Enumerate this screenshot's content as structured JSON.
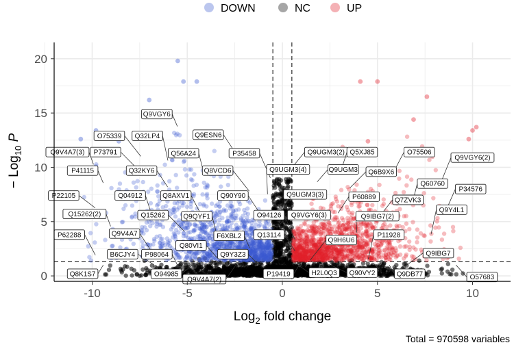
{
  "chart_data": {
    "type": "scatter",
    "title": "",
    "xlabel": "Log2 fold change",
    "ylabel": "-Log10 P",
    "xlim": [
      -12,
      12
    ],
    "ylim": [
      -0.5,
      21.5
    ],
    "xticks": [
      -10,
      -5,
      0,
      5,
      10
    ],
    "yticks": [
      0,
      5,
      10,
      15,
      20
    ],
    "grid": true,
    "legend_position": "top",
    "fc_cutoff": [
      -0.5,
      0.5
    ],
    "p_cutoff": 1.3,
    "caption": "Total = 970598 variables",
    "series": [
      {
        "name": "DOWN",
        "color": "#3b5bcf"
      },
      {
        "name": "NC",
        "color": "#000000"
      },
      {
        "name": "UP",
        "color": "#e0202c"
      }
    ],
    "highlight_points": [
      {
        "series": "DOWN",
        "x": -5.5,
        "y": 19.8
      },
      {
        "series": "DOWN",
        "x": -5.2,
        "y": 17.9
      },
      {
        "series": "DOWN",
        "x": -4.5,
        "y": 17.9
      },
      {
        "series": "DOWN",
        "x": -7.0,
        "y": 16.2
      },
      {
        "series": "DOWN",
        "x": -10.6,
        "y": 12.6
      },
      {
        "series": "DOWN",
        "x": -9.8,
        "y": 13.4
      },
      {
        "series": "DOWN",
        "x": -8.6,
        "y": 12.4
      },
      {
        "series": "UP",
        "x": 4.1,
        "y": 17.9
      },
      {
        "series": "UP",
        "x": 5.0,
        "y": 17.9
      },
      {
        "series": "UP",
        "x": 7.6,
        "y": 16.5
      },
      {
        "series": "UP",
        "x": 6.9,
        "y": 14.4
      },
      {
        "series": "UP",
        "x": 10.2,
        "y": 13.7
      },
      {
        "series": "UP",
        "x": 10.0,
        "y": 13.4
      },
      {
        "series": "UP",
        "x": 9.8,
        "y": 12.6
      },
      {
        "series": "UP",
        "x": 4.5,
        "y": 12.4
      }
    ],
    "labels": [
      {
        "text": "Q9VGY6",
        "x": -6.6,
        "y": 14.9
      },
      {
        "text": "Q9ESN6",
        "x": -3.9,
        "y": 13.0
      },
      {
        "text": "O75339",
        "x": -9.1,
        "y": 12.9
      },
      {
        "text": "Q32LP4",
        "x": -7.1,
        "y": 12.9
      },
      {
        "text": "Q9V4A7(3)",
        "x": -11.3,
        "y": 11.4
      },
      {
        "text": "P73791",
        "x": -9.3,
        "y": 11.4
      },
      {
        "text": "Q56A24",
        "x": -5.2,
        "y": 11.3
      },
      {
        "text": "P35458",
        "x": -2.0,
        "y": 11.3
      },
      {
        "text": "Q9UGM3(2)",
        "x": 2.3,
        "y": 11.4
      },
      {
        "text": "Q5XJ85",
        "x": 4.2,
        "y": 11.4
      },
      {
        "text": "O75506",
        "x": 7.2,
        "y": 11.4
      },
      {
        "text": "Q9VGY6(2)",
        "x": 10.0,
        "y": 10.9
      },
      {
        "text": "P41115",
        "x": -10.5,
        "y": 9.7
      },
      {
        "text": "Q32KY6",
        "x": -7.4,
        "y": 9.7
      },
      {
        "text": "Q8VCD6",
        "x": -3.4,
        "y": 9.7
      },
      {
        "text": "Q9UGM3(4)",
        "x": 0.3,
        "y": 9.8
      },
      {
        "text": "Q9UGM3",
        "x": 3.2,
        "y": 9.8
      },
      {
        "text": "Q6B9X6",
        "x": 5.2,
        "y": 9.6
      },
      {
        "text": "Q60760",
        "x": 7.9,
        "y": 8.5
      },
      {
        "text": "P34576",
        "x": 9.9,
        "y": 8.0
      },
      {
        "text": "P22105",
        "x": -11.5,
        "y": 7.4
      },
      {
        "text": "Q04912",
        "x": -8.0,
        "y": 7.4
      },
      {
        "text": "Q8AXV1",
        "x": -5.6,
        "y": 7.4
      },
      {
        "text": "Q90Y90",
        "x": -2.6,
        "y": 7.4
      },
      {
        "text": "Q9UGM3(3)",
        "x": 1.2,
        "y": 7.5
      },
      {
        "text": "P60889",
        "x": 4.3,
        "y": 7.3
      },
      {
        "text": "Q7ZVK3",
        "x": 6.6,
        "y": 7.0
      },
      {
        "text": "Q9Y4L1",
        "x": 8.9,
        "y": 6.1
      },
      {
        "text": "Q15262(2)",
        "x": -10.4,
        "y": 5.7
      },
      {
        "text": "Q15262",
        "x": -6.8,
        "y": 5.6
      },
      {
        "text": "Q9QYF1",
        "x": -4.5,
        "y": 5.5
      },
      {
        "text": "O94126",
        "x": -0.7,
        "y": 5.6
      },
      {
        "text": "Q9VGY6(3)",
        "x": 1.4,
        "y": 5.6
      },
      {
        "text": "Q9IBG7(2)",
        "x": 5.0,
        "y": 5.5
      },
      {
        "text": "P62288",
        "x": -11.2,
        "y": 3.8
      },
      {
        "text": "Q9V4A7",
        "x": -8.3,
        "y": 3.9
      },
      {
        "text": "F6XBL2",
        "x": -2.8,
        "y": 3.7
      },
      {
        "text": "Q13114",
        "x": -0.7,
        "y": 3.8
      },
      {
        "text": "Q9H6U6",
        "x": 3.1,
        "y": 3.3
      },
      {
        "text": "P11928",
        "x": 5.6,
        "y": 3.8
      },
      {
        "text": "Q80VI1",
        "x": -4.8,
        "y": 2.8
      },
      {
        "text": "B6CJY4",
        "x": -8.4,
        "y": 2.0
      },
      {
        "text": "P98064",
        "x": -6.6,
        "y": 2.0
      },
      {
        "text": "Q9Y3Z3",
        "x": -2.6,
        "y": 2.0
      },
      {
        "text": "Q9IBG7",
        "x": 8.2,
        "y": 2.1
      },
      {
        "text": "Q8K1S7",
        "x": -10.5,
        "y": 0.2
      },
      {
        "text": "O94985",
        "x": -6.1,
        "y": 0.2
      },
      {
        "text": "Q9V4A7(2)",
        "x": -4.1,
        "y": -0.3
      },
      {
        "text": "P19419",
        "x": -0.2,
        "y": 0.2
      },
      {
        "text": "H2L0Q3",
        "x": 2.2,
        "y": 0.3
      },
      {
        "text": "Q90VY2",
        "x": 4.2,
        "y": 0.3
      },
      {
        "text": "Q9DB77",
        "x": 6.7,
        "y": 0.2
      },
      {
        "text": "O57683",
        "x": 10.5,
        "y": -0.1
      }
    ]
  }
}
